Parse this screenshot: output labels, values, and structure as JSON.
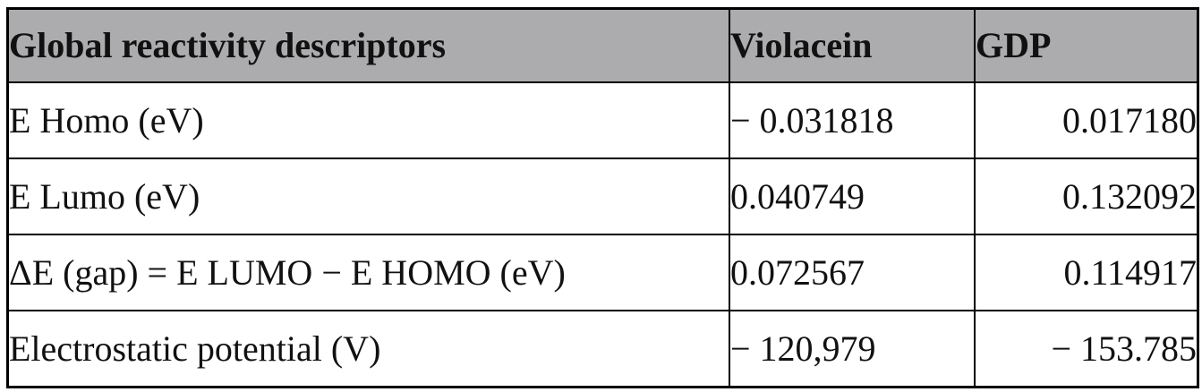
{
  "table": {
    "columns": [
      {
        "label": "Global reactivity descriptors"
      },
      {
        "label": "Violacein"
      },
      {
        "label": "GDP"
      }
    ],
    "rows": [
      {
        "label": "E Homo (eV)",
        "violacein": "− 0.031818",
        "gdp": "0.017180"
      },
      {
        "label": "E Lumo (eV)",
        "violacein": "0.040749",
        "gdp": "0.132092"
      },
      {
        "label": "ΔE (gap) = E LUMO − E HOMO (eV)",
        "violacein": "0.072567",
        "gdp": "0.114917"
      },
      {
        "label": "Electrostatic potential (V)",
        "violacein": "− 120,979",
        "gdp": "− 153.785"
      }
    ],
    "colors": {
      "header_bg": "#ACACAE",
      "border": "#000000",
      "cell_bg": "#FFFFFF",
      "text": "#111111"
    }
  }
}
